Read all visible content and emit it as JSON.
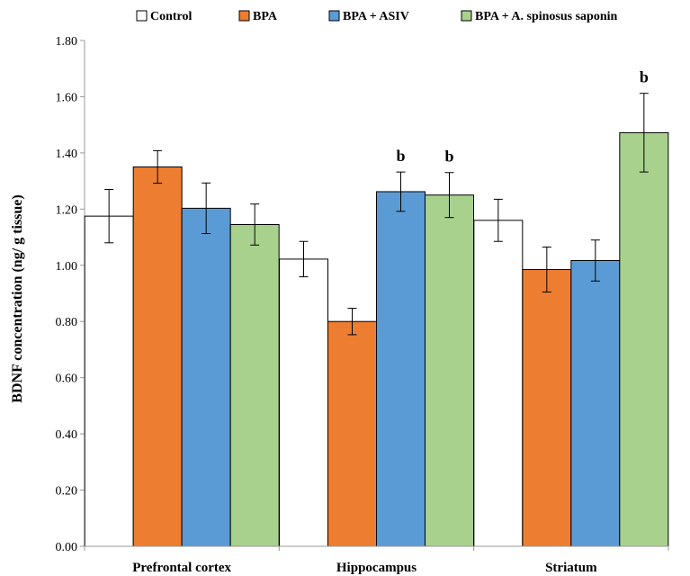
{
  "chart_data": {
    "type": "bar",
    "categories": [
      "Prefrontal cortex",
      "Hippocampus",
      "Striatum"
    ],
    "series": [
      {
        "name": "Control",
        "color": "#ffffff",
        "values": [
          1.175,
          1.022,
          1.16
        ],
        "errors": [
          0.095,
          0.063,
          0.075
        ]
      },
      {
        "name": "BPA",
        "color": "#ed7d31",
        "values": [
          1.35,
          0.8,
          0.985
        ],
        "errors": [
          0.058,
          0.047,
          0.08
        ]
      },
      {
        "name": "BPA + ASIV",
        "color": "#5b9bd5",
        "values": [
          1.203,
          1.262,
          1.017
        ],
        "errors": [
          0.09,
          0.07,
          0.073
        ]
      },
      {
        "name": "BPA + A. spinosus saponin",
        "color": "#a9d18e",
        "values": [
          1.145,
          1.25,
          1.472
        ],
        "errors": [
          0.073,
          0.08,
          0.14
        ]
      }
    ],
    "annotations": [
      {
        "text": "b",
        "category": 1,
        "series": 2
      },
      {
        "text": "b",
        "category": 1,
        "series": 3
      },
      {
        "text": "b",
        "category": 2,
        "series": 3
      }
    ],
    "ylabel": "BDNF concentration (ng/ g tissue)",
    "xlabel": "",
    "ylim": [
      0,
      1.8
    ],
    "yticks": [
      "0.00",
      "0.20",
      "0.40",
      "0.60",
      "0.80",
      "1.00",
      "1.20",
      "1.40",
      "1.60",
      "1.80"
    ],
    "legend_position": "top",
    "grid": false
  }
}
